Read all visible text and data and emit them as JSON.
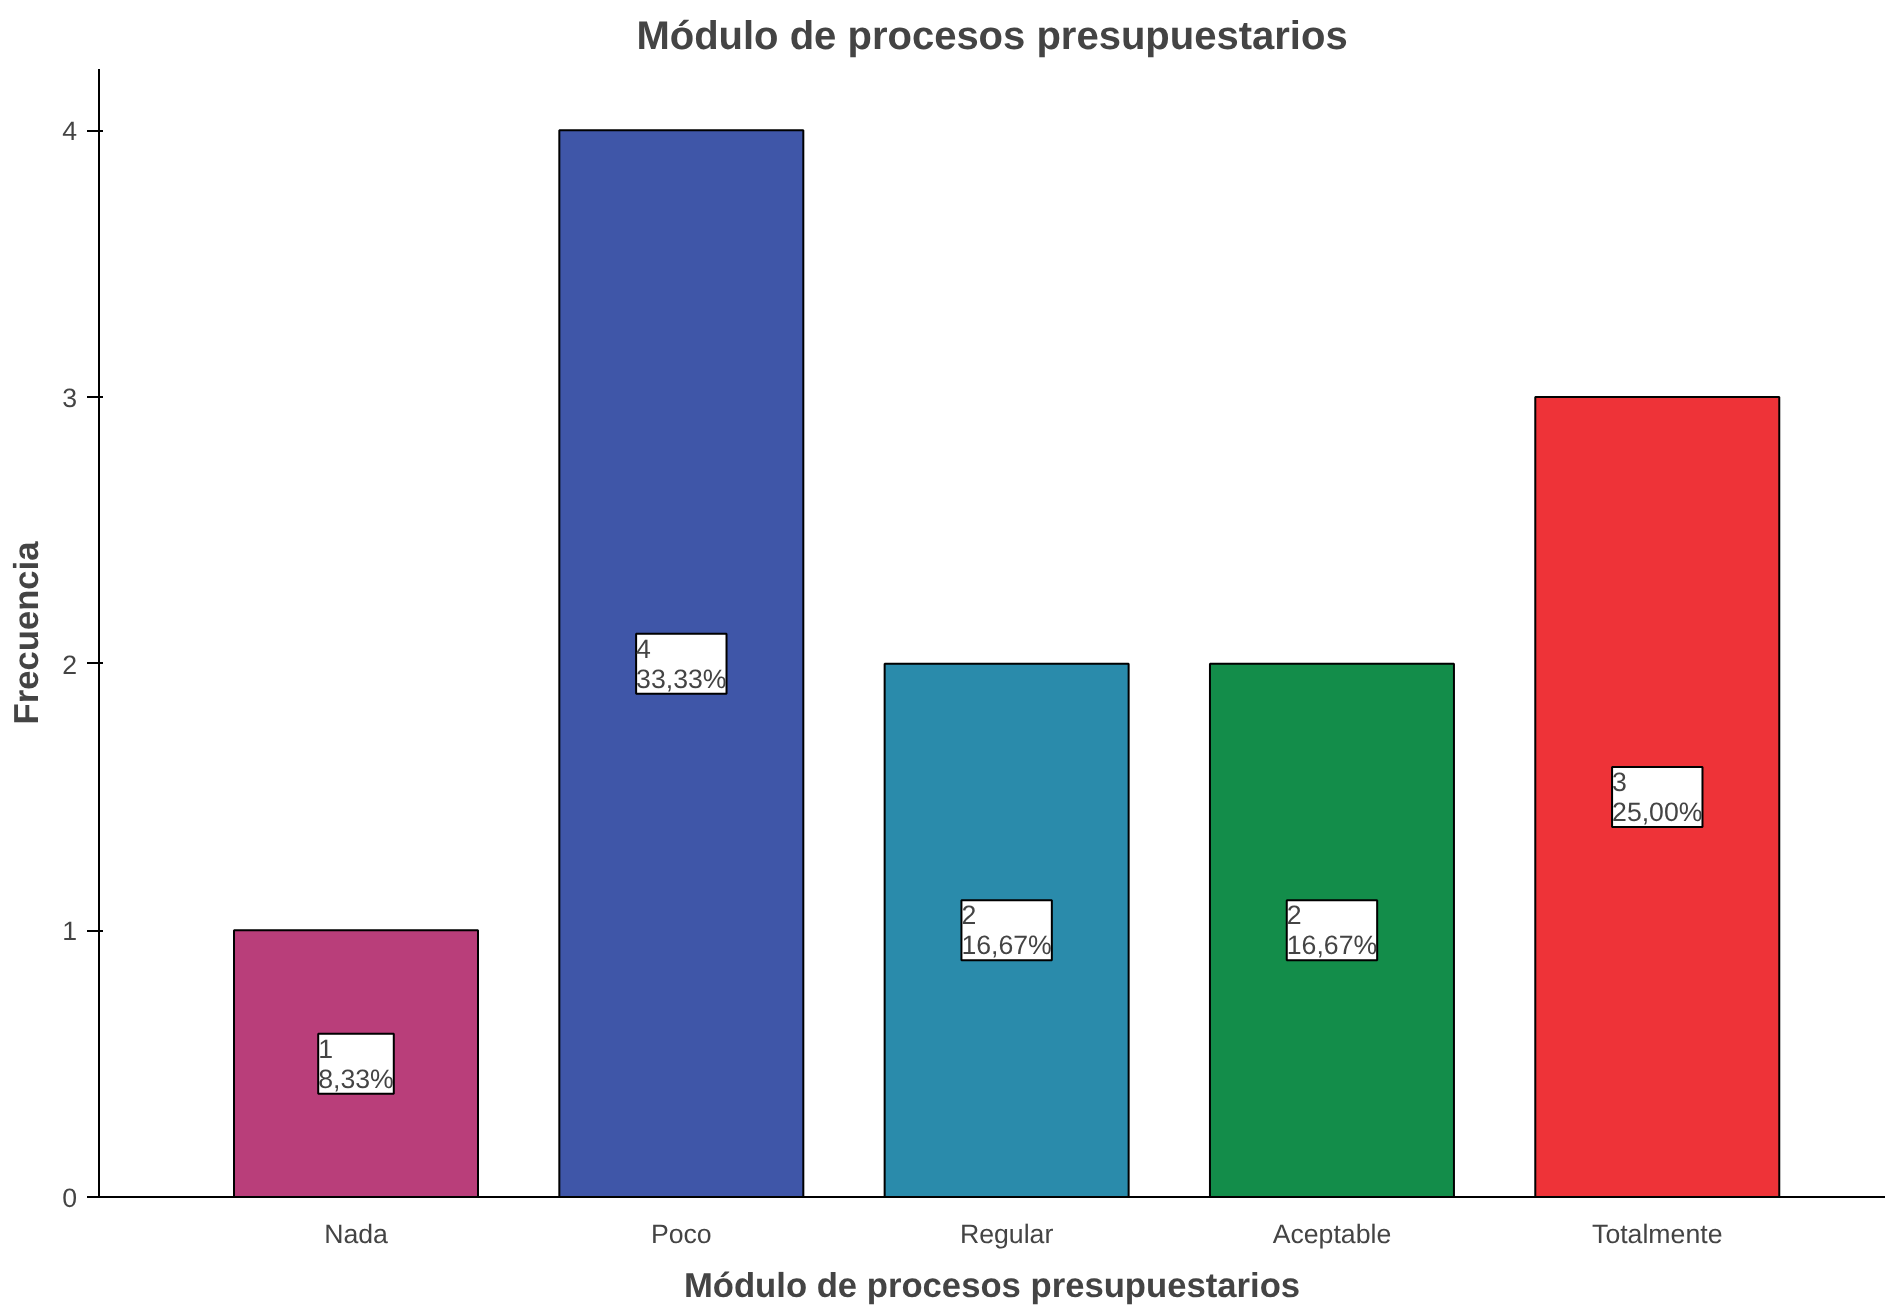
{
  "chart_data": {
    "type": "bar",
    "title": "Módulo de procesos presupuestarios",
    "xlabel": "Módulo de procesos presupuestarios",
    "ylabel": "Frecuencia",
    "categories": [
      "Nada",
      "Poco",
      "Regular",
      "Aceptable",
      "Totalmente"
    ],
    "values": [
      1,
      4,
      2,
      2,
      3
    ],
    "colors": [
      "#b93e7a",
      "#3f56a8",
      "#2a8bab",
      "#138d4a",
      "#ee3338"
    ],
    "value_labels": [
      "1\n8,33%",
      "4\n33,33%",
      "2\n16,67%",
      "2\n16,67%",
      "3\n25,00%"
    ],
    "ylim": [
      0,
      4.23
    ],
    "yticks": [
      0,
      1,
      2,
      3,
      4
    ],
    "grid": false
  }
}
